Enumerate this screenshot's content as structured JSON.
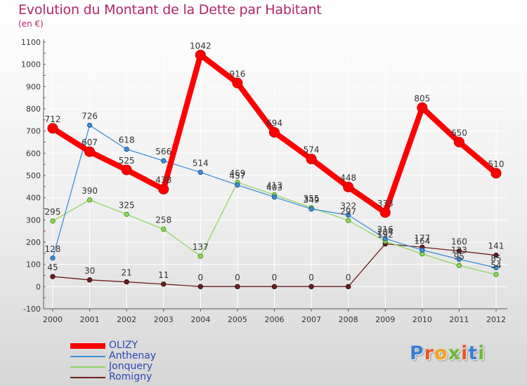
{
  "title": "Evolution du Montant de la Dette par Habitant",
  "subtitle": "(en €)",
  "logo_text": "Proxiti",
  "logo_colors": [
    "#3a7fd4",
    "#e8552a",
    "#f2a419",
    "#6cb93a",
    "#e8552a",
    "#3a7fd4",
    "#6cb93a"
  ],
  "chart_data": {
    "type": "line",
    "x": [
      "2000",
      "2001",
      "2002",
      "2003",
      "2004",
      "2005",
      "2006",
      "2007",
      "2008",
      "2009",
      "2010",
      "2011",
      "2012"
    ],
    "ylim": [
      -100,
      1100
    ],
    "yticks": [
      "-100",
      "0",
      "100",
      "200",
      "300",
      "400",
      "500",
      "600",
      "700",
      "800",
      "900",
      "1000",
      "1100"
    ],
    "grid": true,
    "legend": "bottom-left",
    "series": [
      {
        "name": "OLIZY",
        "color": "#ff0000",
        "values": [
          712,
          607,
          525,
          438,
          1042,
          916,
          694,
          574,
          448,
          333,
          805,
          650,
          510
        ],
        "labels": [
          "712",
          "607",
          "525",
          "438",
          "1042",
          "916",
          "694",
          "574",
          "448",
          "333",
          "805",
          "650",
          "510"
        ]
      },
      {
        "name": "Anthenay",
        "color": "#3d8fd6",
        "values": [
          128,
          726,
          618,
          566,
          514,
          457,
          403,
          349,
          322,
          216,
          164,
          123,
          85
        ],
        "labels": [
          "128",
          "726",
          "618",
          "566",
          "514",
          "457",
          "403",
          "349",
          "322",
          "216",
          "164",
          "123",
          "85"
        ]
      },
      {
        "name": "Jonquery",
        "color": "#8ed663",
        "values": [
          295,
          390,
          325,
          258,
          137,
          469,
          413,
          355,
          297,
          204,
          147,
          95,
          54
        ],
        "labels": [
          "295",
          "390",
          "325",
          "258",
          "137",
          "469",
          "413",
          "355",
          "297",
          "204",
          "",
          "95",
          "54"
        ]
      },
      {
        "name": "Romigny",
        "color": "#6e1f1f",
        "values": [
          45,
          30,
          21,
          11,
          0,
          0,
          0,
          0,
          0,
          192,
          177,
          160,
          141
        ],
        "labels": [
          "45",
          "30",
          "21",
          "11",
          "0",
          "0",
          "0",
          "0",
          "0",
          "192",
          "177",
          "160",
          "141"
        ]
      }
    ]
  }
}
